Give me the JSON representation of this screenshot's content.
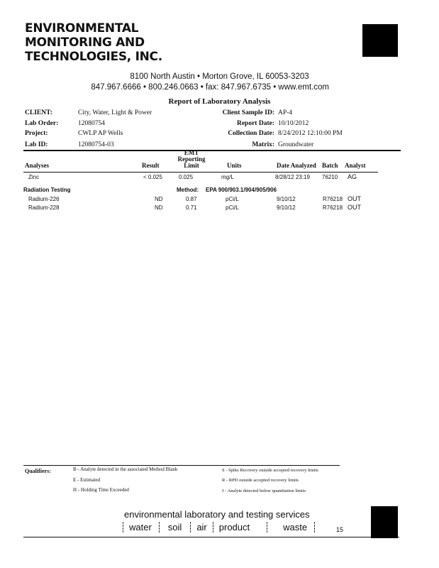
{
  "company": {
    "line1": "ENVIRONMENTAL",
    "line2": "MONITORING AND",
    "line3": "TECHNOLOGIES, INC.",
    "address": "8100 North Austin • Morton Grove, IL 60053-3203",
    "contact": "847.967.6666 • 800.246.0663 • fax: 847.967.6735 • www.emt.com"
  },
  "report": {
    "title": "Report of Laboratory Analysis",
    "fields": {
      "client_label": "CLIENT:",
      "client": "City, Water, Light & Power",
      "lab_order_label": "Lab Order:",
      "lab_order": "12080754",
      "project_label": "Project:",
      "project": "CWLP AP Wells",
      "lab_id_label": "Lab ID:",
      "lab_id": "12080754-03",
      "sample_id_label": "Client Sample ID:",
      "sample_id": "AP-4",
      "report_date_label": "Report Date:",
      "report_date": "10/10/2012",
      "collection_date_label": "Collection Date:",
      "collection_date": "8/24/2012 12:10:00 PM",
      "matrix_label": "Matrix:",
      "matrix": "Groundwater"
    }
  },
  "table": {
    "headers": {
      "analyses": "Analyses",
      "result": "Result",
      "limit1": "EMT",
      "limit2": "Reporting",
      "limit3": "Limit",
      "units": "Units",
      "date": "Date Analyzed",
      "batch": "Batch",
      "analyst": "Analyst"
    },
    "rows": [
      {
        "analyte": "Zinc",
        "result": "< 0.025",
        "limit": "0.025",
        "units": "mg/L",
        "date": "8/28/12 23:19",
        "batch": "76210",
        "analyst": "AG"
      }
    ],
    "section": {
      "title": "Radiation Testing",
      "method_label": "Method:",
      "method": "EPA 900/903.1/904/905/906"
    },
    "section_rows": [
      {
        "analyte": "Radium-226",
        "result": "ND",
        "limit": "0.87",
        "units": "pCi/L",
        "date": "9/10/12",
        "batch": "R76218",
        "analyst": "OUT"
      },
      {
        "analyte": "Radium-228",
        "result": "ND",
        "limit": "0.71",
        "units": "pCi/L",
        "date": "9/10/12",
        "batch": "R76218",
        "analyst": "OUT"
      }
    ]
  },
  "qualifiers": {
    "label": "Qualifiers:",
    "items": [
      "B - Analyte detected in the associated Method Blank",
      "E - Estimated",
      "H - Holding Time Exceeded",
      "S - Spike Recovery outside accepted recovery limits",
      "R - RPD outside accepted recovery limits",
      "J - Analyte detected below quantitation limits"
    ]
  },
  "footer": {
    "tagline": "environmental laboratory and testing services",
    "services": [
      "water",
      "soil",
      "air",
      "product",
      "waste"
    ],
    "page": "15"
  }
}
